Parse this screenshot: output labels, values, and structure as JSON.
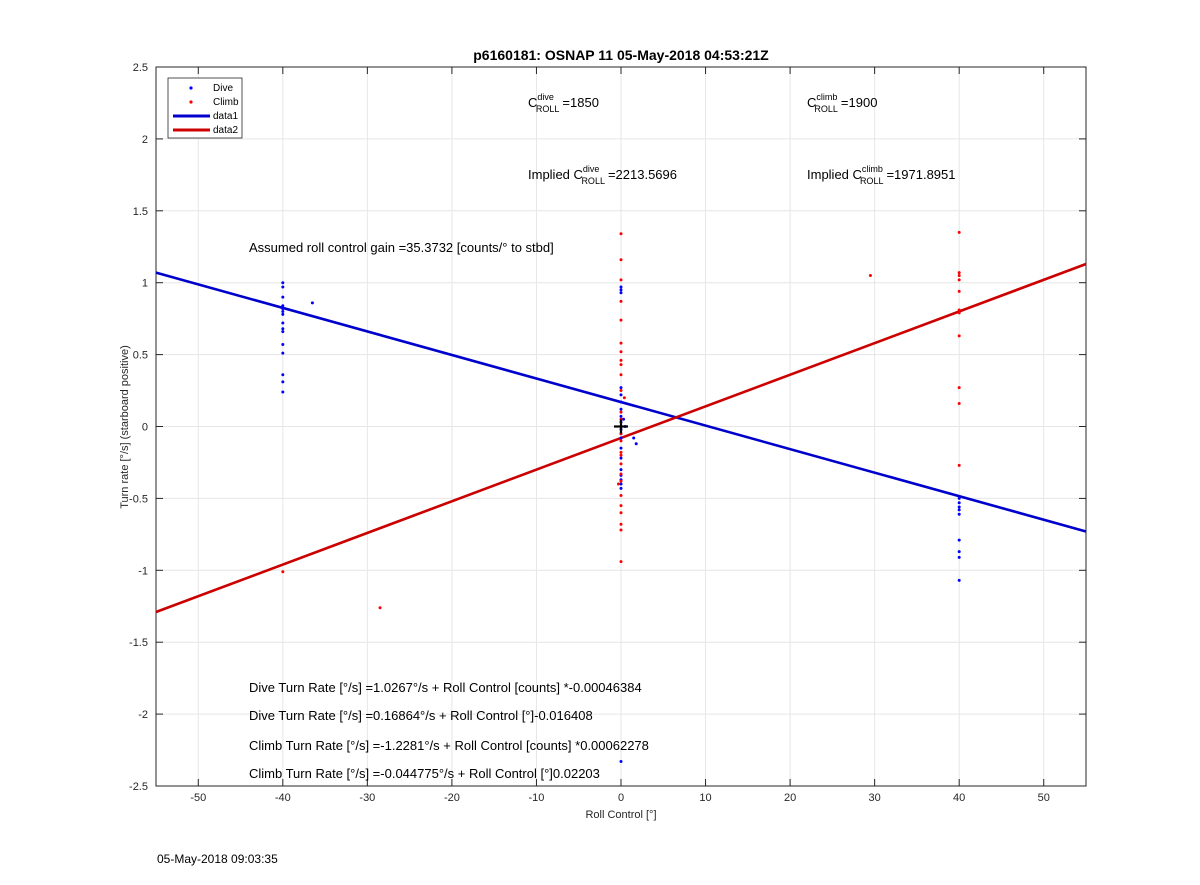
{
  "chart_data": {
    "type": "scatter",
    "title": "p6160181: OSNAP 11 05-May-2018 04:53:21Z",
    "xlabel": "Roll Control [°]",
    "ylabel": "Turn rate [°/s] (starboard positive)",
    "xlim": [
      -55,
      55
    ],
    "ylim": [
      -2.5,
      2.5
    ],
    "xticks": [
      -50,
      -40,
      -30,
      -20,
      -10,
      0,
      10,
      20,
      30,
      40,
      50
    ],
    "yticks": [
      -2.5,
      -2,
      -1.5,
      -1,
      -0.5,
      0,
      0.5,
      1,
      1.5,
      2,
      2.5
    ],
    "grid": true,
    "legend_position": "top-left",
    "colors": {
      "dive": "#0000ff",
      "climb": "#ff0000",
      "data1": "#0000cc",
      "data2": "#cc0000",
      "marker": "#000000"
    },
    "series": [
      {
        "name": "Dive",
        "kind": "points",
        "points": [
          [
            -40,
            1.0
          ],
          [
            -40,
            0.97
          ],
          [
            -40,
            0.9
          ],
          [
            -40,
            0.84
          ],
          [
            -40,
            0.82
          ],
          [
            -40,
            0.8
          ],
          [
            -40,
            0.78
          ],
          [
            -40,
            0.72
          ],
          [
            -40,
            0.68
          ],
          [
            -40,
            0.66
          ],
          [
            -40,
            0.57
          ],
          [
            -40,
            0.51
          ],
          [
            -40,
            0.36
          ],
          [
            -40,
            0.31
          ],
          [
            -40,
            0.24
          ],
          [
            -36.5,
            0.86
          ],
          [
            0,
            0.97
          ],
          [
            0,
            0.95
          ],
          [
            0,
            0.93
          ],
          [
            0,
            0.27
          ],
          [
            0,
            0.22
          ],
          [
            0,
            0.17
          ],
          [
            0,
            0.12
          ],
          [
            0,
            0.07
          ],
          [
            0,
            0.03
          ],
          [
            0,
            0.0
          ],
          [
            0,
            -0.02
          ],
          [
            0,
            -0.05
          ],
          [
            0,
            -0.08
          ],
          [
            0,
            -0.15
          ],
          [
            0,
            -0.22
          ],
          [
            0,
            -0.3
          ],
          [
            0,
            -0.34
          ],
          [
            0,
            -0.37
          ],
          [
            0,
            -0.4
          ],
          [
            0,
            -0.43
          ],
          [
            0,
            -2.33
          ],
          [
            0.5,
            0.0
          ],
          [
            1.5,
            -0.08
          ],
          [
            1.8,
            -0.12
          ],
          [
            0.3,
            0.05
          ],
          [
            40,
            -0.5
          ],
          [
            40,
            -0.53
          ],
          [
            40,
            -0.56
          ],
          [
            40,
            -0.58
          ],
          [
            40,
            -0.61
          ],
          [
            40,
            -0.79
          ],
          [
            40,
            -0.87
          ],
          [
            40,
            -0.91
          ],
          [
            40,
            -1.07
          ]
        ]
      },
      {
        "name": "Climb",
        "kind": "points",
        "points": [
          [
            -40,
            -1.01
          ],
          [
            -28.5,
            -1.26
          ],
          [
            0,
            1.34
          ],
          [
            0,
            1.16
          ],
          [
            0,
            1.02
          ],
          [
            0,
            0.87
          ],
          [
            0,
            0.74
          ],
          [
            0,
            0.58
          ],
          [
            0,
            0.52
          ],
          [
            0,
            0.46
          ],
          [
            0,
            0.43
          ],
          [
            0,
            0.36
          ],
          [
            0,
            0.25
          ],
          [
            0,
            0.1
          ],
          [
            0,
            0.05
          ],
          [
            0,
            -0.05
          ],
          [
            0,
            -0.1
          ],
          [
            0,
            -0.18
          ],
          [
            0,
            -0.2
          ],
          [
            0,
            -0.26
          ],
          [
            0,
            -0.33
          ],
          [
            0,
            -0.38
          ],
          [
            0,
            -0.48
          ],
          [
            0,
            -0.55
          ],
          [
            0,
            -0.6
          ],
          [
            0,
            -0.68
          ],
          [
            0,
            -0.72
          ],
          [
            0,
            -0.94
          ],
          [
            -0.3,
            -0.4
          ],
          [
            0.4,
            0.2
          ],
          [
            29.5,
            1.05
          ],
          [
            40,
            1.35
          ],
          [
            40,
            1.07
          ],
          [
            40,
            1.05
          ],
          [
            40,
            1.02
          ],
          [
            40,
            0.94
          ],
          [
            40,
            0.81
          ],
          [
            40,
            0.79
          ],
          [
            40,
            0.63
          ],
          [
            40,
            0.27
          ],
          [
            40,
            0.16
          ],
          [
            40,
            -0.27
          ]
        ]
      },
      {
        "name": "data1",
        "kind": "line",
        "points": [
          [
            -55,
            1.07
          ],
          [
            55,
            -0.73
          ]
        ]
      },
      {
        "name": "data2",
        "kind": "line",
        "points": [
          [
            -55,
            -1.29
          ],
          [
            55,
            1.13
          ]
        ]
      },
      {
        "name": "",
        "kind": "cross",
        "points": [
          [
            0,
            0
          ]
        ]
      }
    ],
    "annotations": {
      "c_dive_label": "C",
      "c_dive_sup": "dive",
      "c_dive_sub": "ROLL",
      "c_dive_value": "=1850",
      "c_climb_label": "C",
      "c_climb_sup": "climb",
      "c_climb_sub": "ROLL",
      "c_climb_value": "=1900",
      "implied_dive_prefix": "Implied C",
      "implied_dive_sup": "dive",
      "implied_dive_sub": "ROLL",
      "implied_dive_value": "=2213.5696",
      "implied_climb_prefix": "Implied C",
      "implied_climb_sup": "climb",
      "implied_climb_sub": "ROLL",
      "implied_climb_value": "=1971.8951",
      "gain": "Assumed roll control gain =35.3732 [counts/° to stbd]",
      "eq1": "Dive Turn Rate [°/s] =1.0267°/s + Roll Control [counts] *-0.00046384",
      "eq2": "Dive Turn Rate [°/s] =0.16864°/s + Roll Control [°]-0.016408",
      "eq3": "Climb Turn Rate [°/s] =-1.2281°/s + Roll Control [counts] *0.00062278",
      "eq4": "Climb Turn Rate [°/s] =-0.044775°/s + Roll Control [°]0.02203"
    }
  },
  "footer": {
    "timestamp": "05-May-2018 09:03:35"
  }
}
